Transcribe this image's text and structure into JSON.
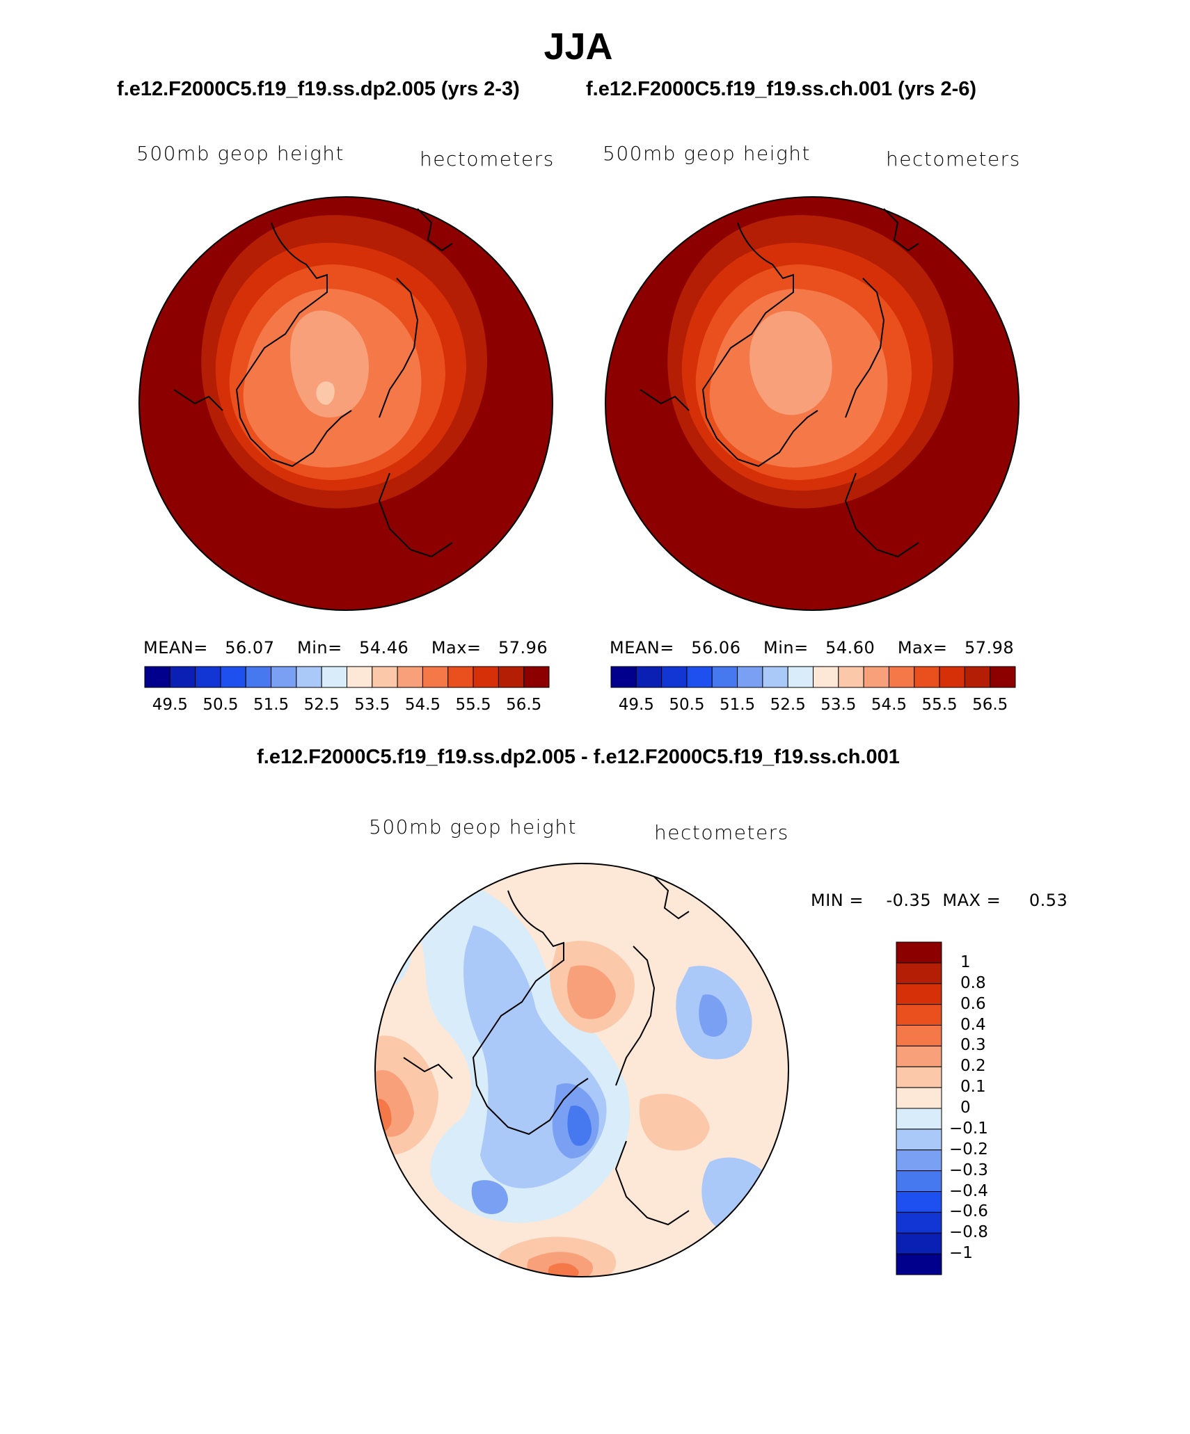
{
  "title": "JJA",
  "panels": [
    {
      "case_title": "f.e12.F2000C5.f19_f19.ss.dp2.005 (yrs 2-3)",
      "variable": "500mb geop height",
      "units": "hectometers",
      "stats": {
        "mean_label": "MEAN=",
        "mean": "56.07",
        "min_label": "Min=",
        "min": "54.46",
        "max_label": "Max=",
        "max": "57.96"
      }
    },
    {
      "case_title": "f.e12.F2000C5.f19_f19.ss.ch.001 (yrs 2-6)",
      "variable": "500mb geop height",
      "units": "hectometers",
      "stats": {
        "mean_label": "MEAN=",
        "mean": "56.06",
        "min_label": "Min=",
        "min": "54.60",
        "max_label": "Max=",
        "max": "57.98"
      }
    }
  ],
  "colorbar_horizontal": {
    "ticks": [
      "49.5",
      "50.5",
      "51.5",
      "52.5",
      "53.5",
      "54.5",
      "55.5",
      "56.5"
    ],
    "colors": [
      "#00008c",
      "#0a20b4",
      "#1236d4",
      "#1e50f0",
      "#4678f0",
      "#7aa0f4",
      "#aac8f8",
      "#d8ecfa",
      "#fde8d8",
      "#fcc8aa",
      "#f8a07a",
      "#f47848",
      "#ea501e",
      "#d63008",
      "#b41e04",
      "#8c0000"
    ]
  },
  "difference": {
    "title": "f.e12.F2000C5.f19_f19.ss.dp2.005 - f.e12.F2000C5.f19_f19.ss.ch.001",
    "variable": "500mb geop height",
    "units": "hectometers",
    "min_label": "MIN =",
    "min": "-0.35",
    "max_label": "MAX =",
    "max": "0.53"
  },
  "colorbar_vertical": {
    "ticks": [
      "1",
      "0.8",
      "0.6",
      "0.4",
      "0.3",
      "0.2",
      "0.1",
      "0",
      "−0.1",
      "−0.2",
      "−0.3",
      "−0.4",
      "−0.6",
      "−0.8",
      "−1"
    ],
    "colors": [
      "#8c0000",
      "#b41e04",
      "#d63008",
      "#ea501e",
      "#f47848",
      "#f8a07a",
      "#fcc8aa",
      "#fde8d8",
      "#d8ecfa",
      "#aac8f8",
      "#7aa0f4",
      "#4678f0",
      "#1e50f0",
      "#1236d4",
      "#0a20b4",
      "#00008c"
    ]
  },
  "chart_data": [
    {
      "type": "heatmap",
      "title": "500mb geop height",
      "units": "hectometers",
      "mean": 56.07,
      "min": 54.46,
      "max": 57.96,
      "levels": [
        49.5,
        50.0,
        50.5,
        51.0,
        51.5,
        52.0,
        52.5,
        53.0,
        53.5,
        54.0,
        54.5,
        55.0,
        55.5,
        56.0,
        56.5
      ]
    },
    {
      "type": "heatmap",
      "title": "500mb geop height",
      "units": "hectometers",
      "mean": 56.06,
      "min": 54.6,
      "max": 57.98,
      "levels": [
        49.5,
        50.0,
        50.5,
        51.0,
        51.5,
        52.0,
        52.5,
        53.0,
        53.5,
        54.0,
        54.5,
        55.0,
        55.5,
        56.0,
        56.5
      ]
    },
    {
      "type": "heatmap",
      "title": "500mb geop height",
      "units": "hectometers",
      "min": -0.35,
      "max": 0.53,
      "levels": [
        -1,
        -0.8,
        -0.6,
        -0.4,
        -0.3,
        -0.2,
        -0.1,
        0,
        0.1,
        0.2,
        0.3,
        0.4,
        0.6,
        0.8,
        1
      ]
    }
  ]
}
